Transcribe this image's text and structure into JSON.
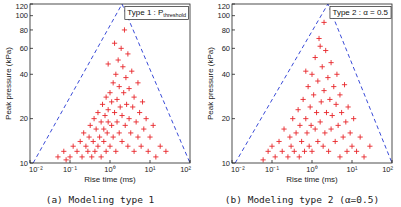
{
  "chart_data": [
    {
      "type": "scatter",
      "annotation": "Type 1 : P",
      "annotation_subscript": "threshold",
      "caption": "(a) Modeling type 1",
      "x_label": "Rise time (ms)",
      "y_label": "Peak pressure (kPa)",
      "log": true,
      "grid": false,
      "xlim": [
        0.01,
        100
      ],
      "ylim": [
        10,
        120
      ],
      "xticks": [
        {
          "value": 0.01,
          "label": "10⁻²"
        },
        {
          "value": 0.1,
          "label": "10⁻¹"
        },
        {
          "value": 1,
          "label": "10⁰"
        },
        {
          "value": 10,
          "label": "10¹"
        },
        {
          "value": 100,
          "label": "10²"
        }
      ],
      "yticks": [
        10,
        20,
        40,
        60,
        80,
        100,
        120
      ],
      "guide_lines": [
        {
          "x": [
            0.012,
            2,
            100
          ],
          "y": [
            10,
            120,
            10
          ],
          "color": "#3a4bd8",
          "line_style": "dashed"
        }
      ],
      "x": [
        0.05,
        0.07,
        0.08,
        0.1,
        0.12,
        0.15,
        0.18,
        0.2,
        0.22,
        0.25,
        0.28,
        0.3,
        0.32,
        0.35,
        0.38,
        0.4,
        0.42,
        0.45,
        0.5,
        0.5,
        0.55,
        0.6,
        0.6,
        0.65,
        0.7,
        0.7,
        0.75,
        0.8,
        0.8,
        0.85,
        0.9,
        0.9,
        1.0,
        1.0,
        1.1,
        1.1,
        1.2,
        1.2,
        1.3,
        1.4,
        1.4,
        1.5,
        1.5,
        1.6,
        1.7,
        1.7,
        1.8,
        1.9,
        2.0,
        2.0,
        2.1,
        2.2,
        2.3,
        2.4,
        2.5,
        2.6,
        2.8,
        2.8,
        3.0,
        3.0,
        3.3,
        3.5,
        3.7,
        4.0,
        4.0,
        4.5,
        5.0,
        5.0,
        5.5,
        6.0,
        6.5,
        7.0,
        8.0,
        9.0,
        10,
        12,
        14,
        18,
        25,
        1.3,
        0.9
      ],
      "series": [
        {
          "color": "#e8262a",
          "marker": "plus",
          "values": [
            11,
            12,
            10.5,
            11,
            13,
            12,
            14,
            11,
            16,
            13,
            12,
            15,
            18,
            11,
            14,
            20,
            12,
            17,
            13,
            22,
            15,
            19,
            11,
            25,
            14,
            17,
            21,
            12,
            28,
            16,
            19,
            23,
            13,
            30,
            18,
            26,
            15,
            35,
            22,
            12,
            40,
            19,
            27,
            50,
            16,
            33,
            24,
            60,
            14,
            21,
            45,
            30,
            80,
            18,
            38,
            25,
            13,
            55,
            20,
            32,
            16,
            42,
            24,
            12,
            28,
            19,
            35,
            15,
            22,
            13,
            26,
            17,
            20,
            12,
            15,
            18,
            11,
            13,
            12,
            65,
            47
          ]
        }
      ]
    },
    {
      "type": "scatter",
      "annotation": "Type 2 : α = 0.5",
      "annotation_subscript": null,
      "caption": "(b) Modeling type 2 (α=0.5)",
      "x_label": "Rise time (ms)",
      "y_label": "Peak pressure (kPa)",
      "log": true,
      "grid": false,
      "xlim": [
        0.01,
        100
      ],
      "ylim": [
        10,
        120
      ],
      "xticks": [
        {
          "value": 0.01,
          "label": "10⁻²"
        },
        {
          "value": 0.1,
          "label": "10⁻¹"
        },
        {
          "value": 1,
          "label": "10⁰"
        },
        {
          "value": 10,
          "label": "10¹"
        },
        {
          "value": 100,
          "label": "10²"
        }
      ],
      "yticks": [
        10,
        20,
        40,
        60,
        80,
        100,
        120
      ],
      "guide_lines": [
        {
          "x": [
            0.012,
            2.5,
            100
          ],
          "y": [
            10,
            120,
            10
          ],
          "color": "#3a4bd8",
          "line_style": "dashed"
        }
      ],
      "x": [
        0.06,
        0.08,
        0.1,
        0.12,
        0.15,
        0.18,
        0.2,
        0.25,
        0.28,
        0.3,
        0.33,
        0.36,
        0.4,
        0.45,
        0.48,
        0.5,
        0.55,
        0.6,
        0.65,
        0.7,
        0.75,
        0.8,
        0.85,
        0.9,
        0.95,
        1.0,
        1.0,
        1.1,
        1.2,
        1.2,
        1.3,
        1.4,
        1.4,
        1.5,
        1.6,
        1.7,
        1.8,
        1.9,
        2.0,
        2.0,
        2.1,
        2.2,
        2.3,
        2.5,
        2.6,
        2.8,
        3.0,
        3.0,
        3.2,
        3.5,
        3.8,
        4.0,
        4.2,
        4.5,
        5.0,
        5.0,
        5.5,
        6.0,
        6.5,
        7.0,
        7.5,
        8.0,
        9.0,
        10,
        11,
        13,
        16,
        20,
        28,
        1.6,
        0.7
      ],
      "series": [
        {
          "color": "#e8262a",
          "marker": "plus",
          "values": [
            10.5,
            12,
            13,
            11,
            14,
            12,
            17,
            11,
            15,
            13,
            20,
            12,
            16,
            23,
            11,
            18,
            14,
            27,
            12,
            20,
            16,
            33,
            13,
            24,
            18,
            40,
            12,
            29,
            17,
            52,
            22,
            14,
            36,
            70,
            19,
            26,
            45,
            13,
            31,
            90,
            16,
            58,
            22,
            38,
            12,
            27,
            48,
            17,
            21,
            33,
            14,
            25,
            40,
            18,
            29,
            11,
            22,
            15,
            34,
            19,
            12,
            24,
            16,
            13,
            20,
            12,
            15,
            11,
            13,
            62,
            42
          ]
        }
      ]
    }
  ]
}
